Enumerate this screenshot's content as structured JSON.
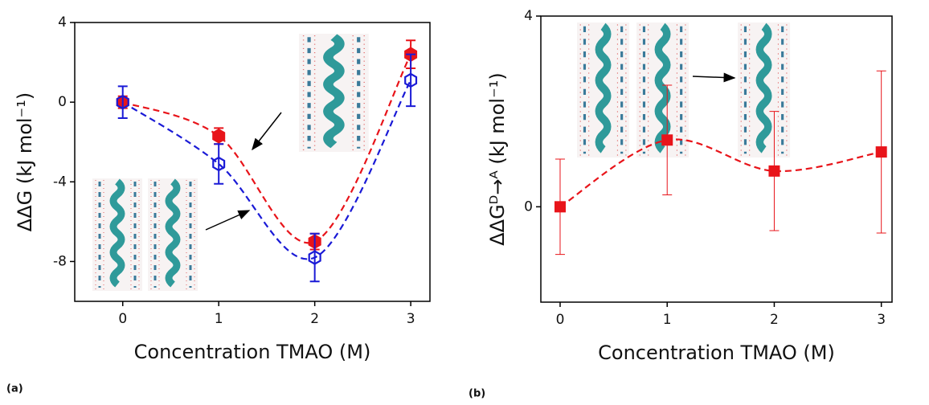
{
  "chart_data": [
    {
      "type": "errorline",
      "panel_label": "(a)",
      "x_label": "Concentration TMAO (M)",
      "y_label": "ΔΔG (kJ mol⁻¹)",
      "xlim": [
        -0.5,
        3.2
      ],
      "ylim": [
        -10,
        4
      ],
      "xticks": [
        0,
        1,
        2,
        3
      ],
      "yticks": [
        -8,
        -4,
        0,
        4
      ],
      "x": [
        0,
        1,
        2,
        3
      ],
      "series": [
        {
          "marker": "filled-hexagon",
          "color": "#e8141a",
          "values": [
            0,
            -1.7,
            -7,
            2.4
          ],
          "errors": [
            0.3,
            0.4,
            0.4,
            0.7
          ]
        },
        {
          "marker": "open-hexagon",
          "color": "#1a1ad6",
          "values": [
            0,
            -3.1,
            -7.8,
            1.1
          ],
          "errors": [
            0.8,
            1.0,
            1.2,
            1.3
          ]
        }
      ]
    },
    {
      "type": "errorline",
      "panel_label": "(b)",
      "x_label": "Concentration TMAO (M)",
      "y_label": "ΔΔGᴰ→ᴬ (kJ mol⁻¹)",
      "xlim": [
        -0.18,
        3.1
      ],
      "ylim": [
        -2,
        4
      ],
      "xticks": [
        0,
        1,
        2,
        3
      ],
      "yticks": [
        0,
        4
      ],
      "x": [
        0,
        1,
        2,
        3
      ],
      "series": [
        {
          "marker": "filled-square",
          "color": "#e8141a",
          "values": [
            0,
            1.4,
            0.75,
            1.15
          ],
          "errors": [
            1.0,
            1.15,
            1.25,
            1.7
          ]
        }
      ]
    }
  ]
}
